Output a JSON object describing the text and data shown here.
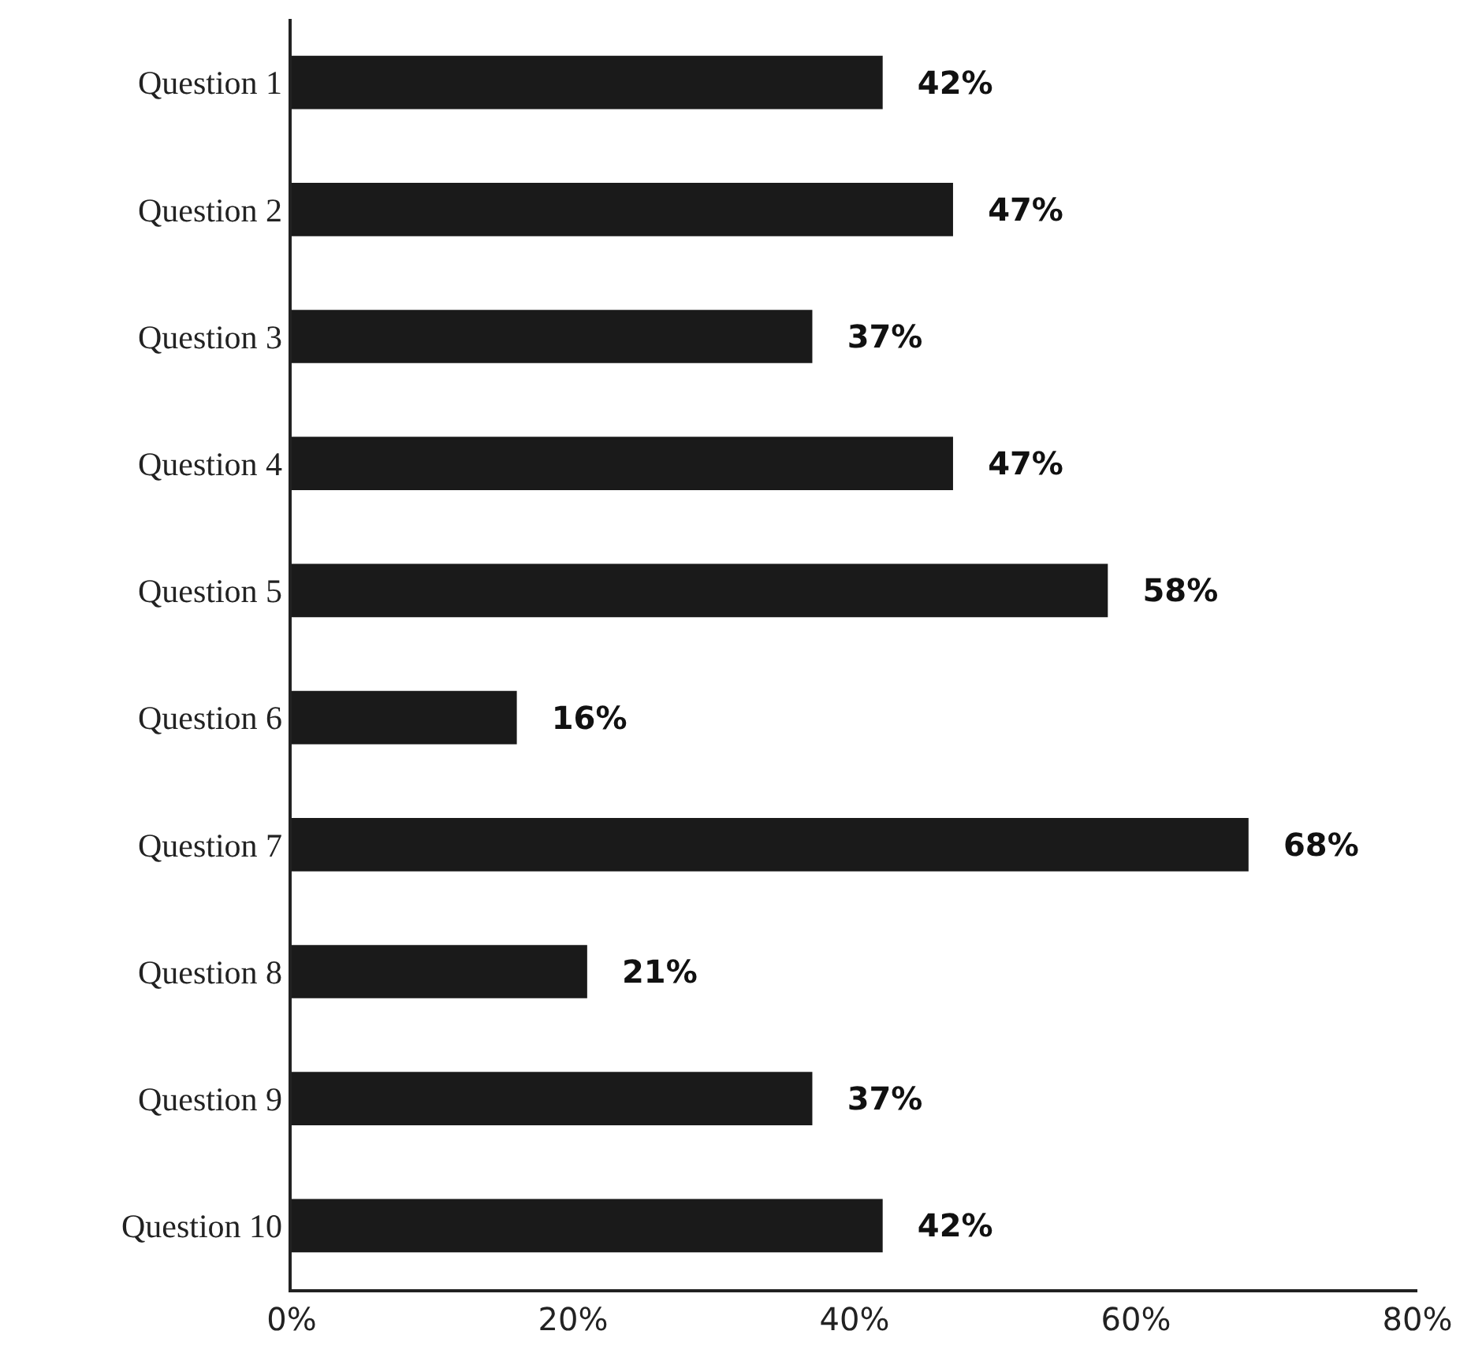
{
  "chart_data": {
    "type": "bar",
    "orientation": "horizontal",
    "categories": [
      "Question 1",
      "Question 2",
      "Question 3",
      "Question 4",
      "Question 5",
      "Question 6",
      "Question 7",
      "Question 8",
      "Question 9",
      "Question 10"
    ],
    "values": [
      42,
      47,
      37,
      47,
      58,
      16,
      68,
      21,
      37,
      42
    ],
    "value_labels": [
      "42%",
      "47%",
      "37%",
      "47%",
      "58%",
      "16%",
      "68%",
      "21%",
      "37%",
      "42%"
    ],
    "color": "#1a1a1a",
    "xlim": [
      0,
      80
    ],
    "xticks": [
      {
        "value": 0,
        "label": "0%"
      },
      {
        "value": 20,
        "label": "20%"
      },
      {
        "value": 40,
        "label": "40%"
      },
      {
        "value": 60,
        "label": "60%"
      },
      {
        "value": 80,
        "label": "80%"
      }
    ],
    "tick_labels": true
  }
}
